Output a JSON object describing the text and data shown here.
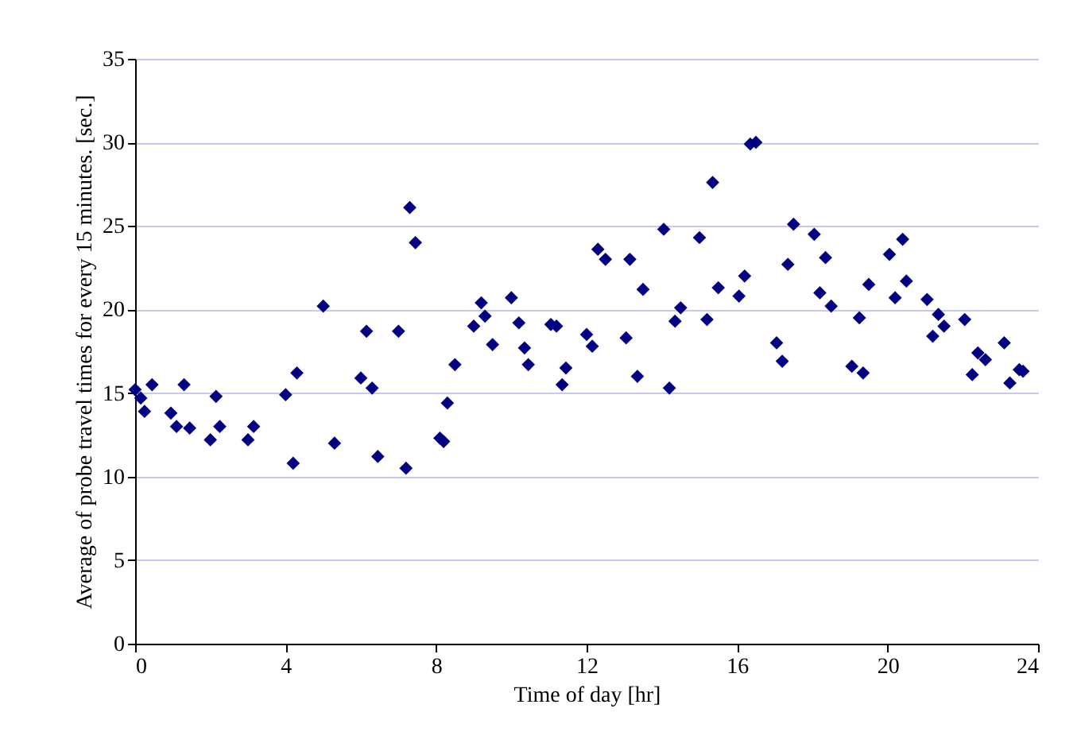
{
  "chart_data": {
    "type": "scatter",
    "xlabel": "Time of day [hr]",
    "ylabel": "Average of probe travel times for every 15 minutes. [sec.]",
    "xlim": [
      0,
      24
    ],
    "xticks": [
      0,
      4,
      8,
      12,
      16,
      20,
      24
    ],
    "ylim": [
      0,
      35
    ],
    "yticks": [
      0,
      5,
      10,
      15,
      20,
      25,
      30,
      35
    ],
    "grid": "y",
    "marker": "diamond",
    "series": [
      {
        "color": "#000080",
        "x": [
          0,
          0.15,
          0.25,
          0.45,
          0.95,
          1.1,
          1.3,
          1.45,
          2.0,
          2.25,
          2.15,
          3.0,
          3.15,
          4.0,
          4.2,
          4.3,
          5.0,
          5.3,
          6.0,
          6.15,
          6.3,
          6.45,
          7.0,
          7.2,
          7.3,
          7.45,
          8.1,
          8.2,
          8.3,
          8.5,
          9.0,
          9.2,
          9.3,
          9.5,
          10.0,
          10.2,
          10.35,
          10.45,
          11.05,
          11.2,
          11.35,
          11.45,
          12.0,
          12.15,
          12.3,
          12.5,
          13.05,
          13.15,
          13.35,
          13.5,
          14.05,
          14.2,
          14.35,
          14.5,
          15.0,
          15.2,
          15.35,
          15.5,
          16.05,
          16.2,
          16.35,
          16.5,
          17.05,
          17.2,
          17.35,
          17.5,
          18.05,
          18.2,
          18.35,
          18.5,
          19.05,
          19.25,
          19.35,
          19.5,
          20.05,
          20.2,
          20.4,
          20.5,
          21.05,
          21.2,
          21.35,
          21.5,
          22.05,
          22.25,
          22.4,
          22.6,
          23.1,
          23.25,
          23.5,
          23.6
        ],
        "values": [
          15.2,
          14.7,
          13.9,
          15.5,
          13.8,
          13.0,
          15.5,
          12.9,
          12.2,
          13.0,
          14.8,
          12.2,
          13.0,
          14.9,
          10.8,
          16.2,
          20.2,
          12.0,
          15.9,
          18.7,
          15.3,
          11.2,
          18.7,
          10.5,
          26.1,
          24.0,
          12.3,
          12.1,
          14.4,
          16.7,
          19.0,
          20.4,
          19.6,
          17.9,
          20.7,
          19.2,
          17.7,
          16.7,
          19.1,
          19.0,
          15.5,
          16.5,
          18.5,
          17.8,
          23.6,
          23.0,
          18.3,
          23.0,
          16.0,
          21.2,
          24.8,
          15.3,
          19.3,
          20.1,
          24.3,
          19.4,
          27.6,
          21.3,
          20.8,
          22.0,
          29.9,
          30.0,
          18.0,
          16.9,
          22.7,
          25.1,
          24.5,
          21.0,
          23.1,
          20.2,
          16.6,
          19.5,
          16.2,
          21.5,
          23.3,
          20.7,
          24.2,
          21.7,
          20.6,
          18.4,
          19.7,
          19.0,
          19.4,
          16.1,
          17.4,
          17.0,
          18.0,
          15.6,
          16.4,
          16.3
        ]
      }
    ]
  }
}
